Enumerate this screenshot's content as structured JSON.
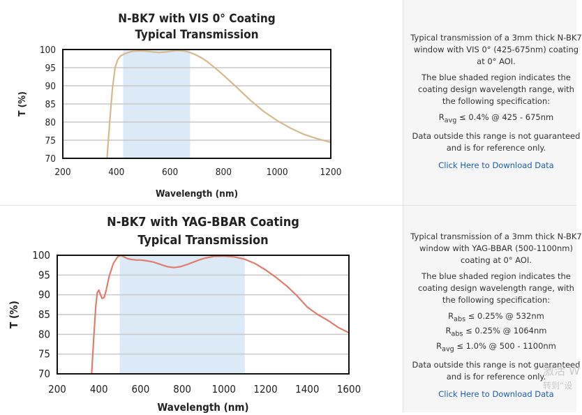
{
  "chart_data": [
    {
      "type": "line",
      "title": "N-BK7 with VIS 0° Coating",
      "subtitle": "Typical Transmission",
      "xlabel": "Wavelength (nm)",
      "ylabel": "T (%)",
      "xlim": [
        200,
        1200
      ],
      "ylim": [
        70,
        100
      ],
      "xticks": [
        200,
        400,
        600,
        800,
        1000,
        1200
      ],
      "yticks": [
        70,
        75,
        80,
        85,
        90,
        95,
        100
      ],
      "grid": true,
      "shaded_region": [
        425,
        675
      ],
      "series": [
        {
          "name": "N-BK7 with VIS 0° Coating",
          "color": "#d7b98e",
          "x": [
            365,
            375,
            385,
            395,
            405,
            415,
            425,
            440,
            460,
            480,
            500,
            520,
            540,
            560,
            580,
            600,
            620,
            640,
            660,
            675,
            700,
            720,
            740,
            760,
            780,
            800,
            850,
            900,
            950,
            1000,
            1050,
            1100,
            1150,
            1200
          ],
          "y": [
            70,
            80,
            89,
            95,
            97.2,
            98.2,
            98.6,
            99.1,
            99.5,
            99.6,
            99.6,
            99.5,
            99.3,
            99.2,
            99.3,
            99.5,
            99.7,
            99.7,
            99.5,
            99.2,
            98.4,
            97.6,
            96.6,
            95.4,
            94.2,
            92.9,
            89.5,
            86,
            82.9,
            80.4,
            78.3,
            76.6,
            75.4,
            74.4
          ]
        }
      ]
    },
    {
      "type": "line",
      "title": "N-BK7 with YAG-BBAR Coating",
      "subtitle": "Typical Transmission",
      "xlabel": "Wavelength (nm)",
      "ylabel": "T (%)",
      "xlim": [
        200,
        1600
      ],
      "ylim": [
        70,
        100
      ],
      "xticks": [
        200,
        400,
        600,
        800,
        1000,
        1200,
        1400,
        1600
      ],
      "yticks": [
        70,
        75,
        80,
        85,
        90,
        95,
        100
      ],
      "grid": true,
      "shaded_region": [
        500,
        1100
      ],
      "series": [
        {
          "name": "N-BK7 with YAG-BBAR Coating",
          "color": "#e07d6c",
          "x": [
            365,
            375,
            385,
            392,
            400,
            408,
            415,
            425,
            435,
            450,
            470,
            490,
            505,
            520,
            540,
            560,
            580,
            600,
            630,
            660,
            700,
            730,
            760,
            790,
            820,
            850,
            880,
            910,
            950,
            1000,
            1050,
            1100,
            1150,
            1200,
            1250,
            1300,
            1350,
            1400,
            1450,
            1500,
            1550,
            1600
          ],
          "y": [
            70,
            79,
            87,
            90.5,
            91.2,
            90,
            89.1,
            89.3,
            91.2,
            94.8,
            98,
            99.6,
            100,
            99.6,
            99.1,
            98.9,
            98.8,
            98.8,
            98.6,
            98.3,
            97.6,
            97.1,
            96.9,
            97.1,
            97.6,
            98.2,
            98.8,
            99.3,
            99.7,
            99.8,
            99.6,
            99,
            97.9,
            96.3,
            94.4,
            92.3,
            89.8,
            86.9,
            85,
            83.5,
            81.7,
            80.4
          ]
        }
      ]
    }
  ],
  "panels": [
    {
      "description": "Typical transmission of a 3mm thick N-BK7 window with VIS 0° (425-675nm) coating at 0° AOI.",
      "shaded_note": "The blue shaded region indicates the coating design wavelength range, with the following specification:",
      "specs": [
        {
          "symbol": "R",
          "sub": "avg",
          "text": " ≤ 0.4% @ 425 - 675nm"
        }
      ],
      "disclaimer": "Data outside this range is not guaranteed and is for reference only.",
      "link": "Click Here to Download Data"
    },
    {
      "description": "Typical transmission of a 3mm thick N-BK7 window with YAG-BBAR (500-1100nm) coating at 0° AOI.",
      "shaded_note": "The blue shaded region indicates the coating design wavelength range, with the following specification:",
      "specs": [
        {
          "symbol": "R",
          "sub": "abs",
          "text": " ≤ 0.25% @ 532nm"
        },
        {
          "symbol": "R",
          "sub": "abs",
          "text": " ≤ 0.25% @ 1064nm"
        },
        {
          "symbol": "R",
          "sub": "avg",
          "text": " ≤ 1.0% @ 500 - 1100nm"
        }
      ],
      "disclaimer": "Data outside this range is not guaranteed and is for reference only.",
      "link": "Click Here to Download Data"
    }
  ],
  "watermark": {
    "line1": "激活 W",
    "line2": "转到“设"
  },
  "colors": {
    "shade": "#dceaf7",
    "grid": "#c9c9c9",
    "axis": "#111111",
    "link": "#1a5fb4"
  }
}
